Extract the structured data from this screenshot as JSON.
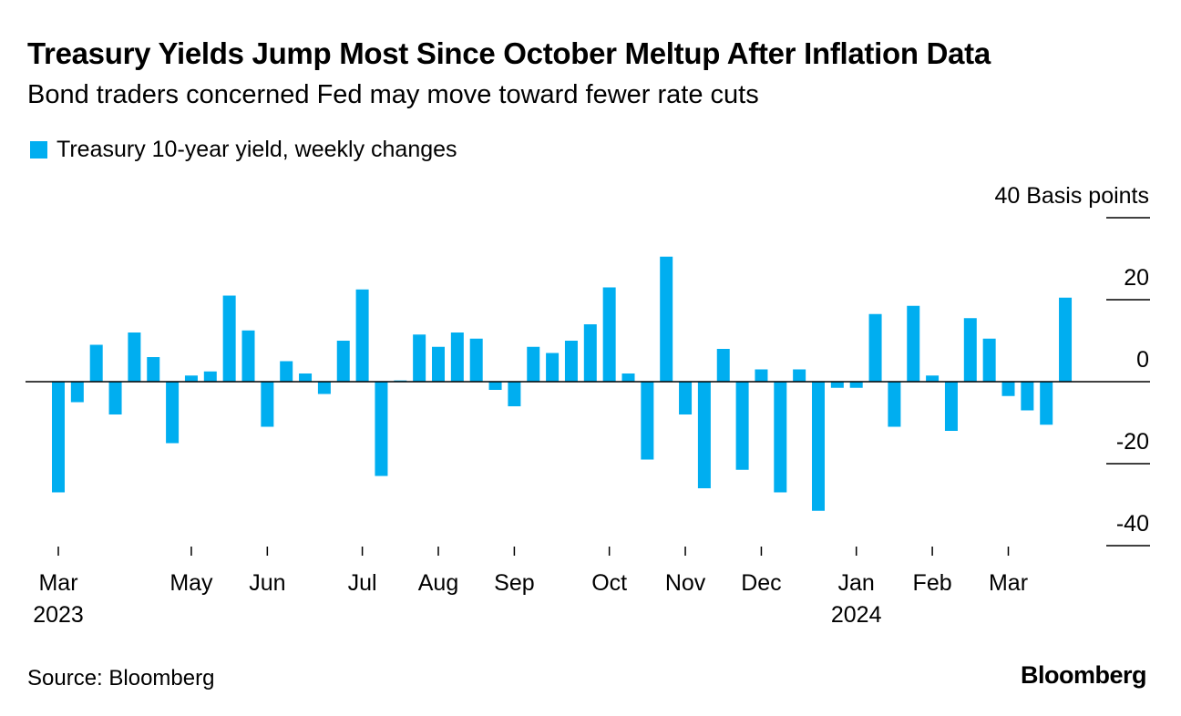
{
  "header": {
    "title": "Treasury Yields Jump Most Since October Meltup After Inflation Data",
    "subtitle": "Bond traders concerned Fed may move toward fewer rate cuts"
  },
  "footer": {
    "source": "Source: Bloomberg",
    "logo": "Bloomberg"
  },
  "colors": {
    "bar": "#00aef0",
    "axis": "#000000"
  },
  "chart_data": {
    "type": "bar",
    "title": "Treasury Yields Jump Most Since October Meltup After Inflation Data",
    "subtitle": "Bond traders concerned Fed may move toward fewer rate cuts",
    "legend": "top-left",
    "y_unit_label": "40 Basis points",
    "ylim": [
      -40,
      40
    ],
    "y_ticks": [
      {
        "value": 40,
        "label": "40 Basis points"
      },
      {
        "value": 20,
        "label": "20"
      },
      {
        "value": 0,
        "label": "0"
      },
      {
        "value": -20,
        "label": "-20"
      },
      {
        "value": -40,
        "label": "-40"
      }
    ],
    "grid": false,
    "x_ticks": [
      {
        "index": 0,
        "label": "Mar",
        "sublabel": "2023"
      },
      {
        "index": 7,
        "label": "May",
        "sublabel": ""
      },
      {
        "index": 11,
        "label": "Jun",
        "sublabel": ""
      },
      {
        "index": 16,
        "label": "Jul",
        "sublabel": ""
      },
      {
        "index": 20,
        "label": "Aug",
        "sublabel": ""
      },
      {
        "index": 24,
        "label": "Sep",
        "sublabel": ""
      },
      {
        "index": 29,
        "label": "Oct",
        "sublabel": ""
      },
      {
        "index": 33,
        "label": "Nov",
        "sublabel": ""
      },
      {
        "index": 37,
        "label": "Dec",
        "sublabel": ""
      },
      {
        "index": 42,
        "label": "Jan",
        "sublabel": "2024"
      },
      {
        "index": 46,
        "label": "Feb",
        "sublabel": ""
      },
      {
        "index": 50,
        "label": "Mar",
        "sublabel": ""
      }
    ],
    "series": [
      {
        "name": "Treasury 10-year yield, weekly changes",
        "values": [
          -27,
          -5,
          9,
          -8,
          12,
          6,
          -15,
          1.5,
          2.5,
          21,
          12.5,
          -11,
          5,
          2,
          -3,
          10,
          22.5,
          -23,
          0.3,
          11.5,
          8.5,
          12,
          10.5,
          -2,
          -6,
          8.5,
          7,
          10,
          14,
          23,
          2,
          -19,
          30.5,
          -8,
          -26,
          8,
          -21.5,
          3,
          -27,
          3,
          -31.5,
          -1.5,
          -1.5,
          16.5,
          -11,
          18.5,
          1.5,
          -12,
          15.5,
          10.5,
          -3.5,
          -7,
          -10.5,
          20.5
        ]
      }
    ]
  }
}
